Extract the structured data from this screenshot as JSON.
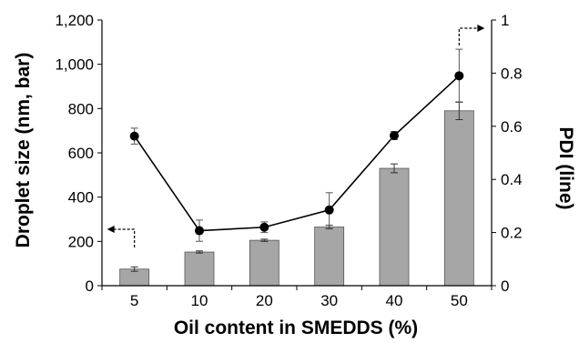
{
  "chart_data": {
    "type": "bar+line",
    "categories": [
      "5",
      "10",
      "20",
      "30",
      "40",
      "50"
    ],
    "xlabel": "Oil content in SMEDDS (%)",
    "ylabel_left": "Droplet size (nm, bar)",
    "ylabel_right": "PDI (line)",
    "ylim_left": [
      0,
      1200
    ],
    "ylim_right": [
      0,
      1
    ],
    "yticks_left": [
      "0",
      "200",
      "400",
      "600",
      "800",
      "1,000",
      "1,200"
    ],
    "yticks_right": [
      "0",
      "0.2",
      "0.4",
      "0.6",
      "0.8",
      "1"
    ],
    "grid": false,
    "bars": {
      "axis": "left",
      "color": "#a6a6a6",
      "values": [
        75,
        152,
        205,
        265,
        530,
        790
      ],
      "errors": [
        10,
        5,
        5,
        8,
        20,
        40
      ]
    },
    "line": {
      "axis": "right",
      "color": "#000000",
      "values": [
        0.563,
        0.207,
        0.22,
        0.285,
        0.565,
        0.79
      ],
      "errors": [
        0.03,
        0.04,
        0.02,
        0.065,
        0.015,
        0.1
      ]
    },
    "annotations": [
      {
        "text": "",
        "meaning": "dashed arrow pointing to left axis (bars)"
      },
      {
        "text": "",
        "meaning": "dashed arrow pointing to right axis (line)"
      }
    ]
  }
}
